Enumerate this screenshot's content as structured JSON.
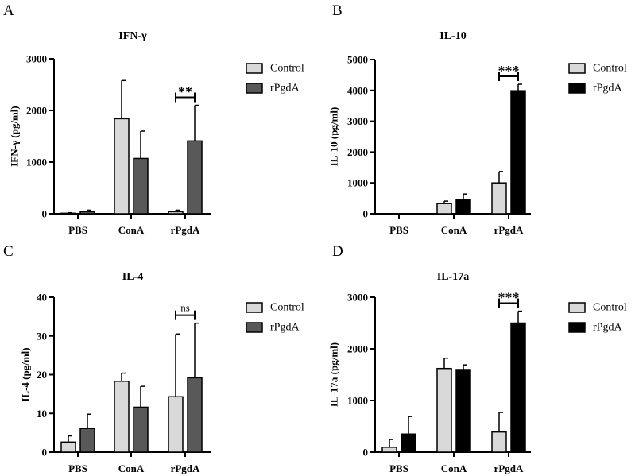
{
  "chart_data": [
    {
      "type": "bar",
      "panel": "A",
      "title": "IFN-γ",
      "ylabel": "IFN-γ (pg/ml)",
      "ylim": [
        0,
        3000
      ],
      "yticks": [
        0,
        1000,
        2000,
        3000
      ],
      "categories": [
        "PBS",
        "ConA",
        "rPgdA"
      ],
      "legend_position": "right",
      "series": [
        {
          "name": "Control",
          "color": "#d9d9d9",
          "values": [
            10,
            1840,
            40
          ],
          "errors": [
            10,
            740,
            30
          ]
        },
        {
          "name": "rPgdA",
          "color": "#595959",
          "values": [
            40,
            1070,
            1410
          ],
          "errors": [
            30,
            530,
            690
          ]
        }
      ],
      "annotations": [
        {
          "category": "rPgdA",
          "label": "**"
        }
      ]
    },
    {
      "type": "bar",
      "panel": "B",
      "title": "IL-10",
      "ylabel": "IL-10 (pg/ml)",
      "ylim": [
        0,
        5000
      ],
      "yticks": [
        0,
        1000,
        2000,
        3000,
        4000,
        5000
      ],
      "categories": [
        "PBS",
        "ConA",
        "rPgdA"
      ],
      "legend_position": "right",
      "series": [
        {
          "name": "Control",
          "color": "#d9d9d9",
          "values": [
            0,
            330,
            1000
          ],
          "errors": [
            0,
            80,
            370
          ]
        },
        {
          "name": "rPgdA",
          "color": "#000000",
          "values": [
            0,
            470,
            3990
          ],
          "errors": [
            0,
            170,
            210
          ]
        }
      ],
      "annotations": [
        {
          "category": "rPgdA",
          "label": "***"
        }
      ]
    },
    {
      "type": "bar",
      "panel": "C",
      "title": "IL-4",
      "ylabel": "IL-4 (pg/ml)",
      "ylim": [
        0,
        40
      ],
      "yticks": [
        0,
        10,
        20,
        30,
        40
      ],
      "categories": [
        "PBS",
        "ConA",
        "rPgdA"
      ],
      "legend_position": "right",
      "series": [
        {
          "name": "Control",
          "color": "#d9d9d9",
          "values": [
            2.6,
            18.3,
            14.3
          ],
          "errors": [
            1.6,
            2.1,
            16.2
          ]
        },
        {
          "name": "rPgdA",
          "color": "#595959",
          "values": [
            6.1,
            11.6,
            19.2
          ],
          "errors": [
            3.7,
            5.4,
            14.1
          ]
        }
      ],
      "annotations": [
        {
          "category": "rPgdA",
          "label": "ns"
        }
      ]
    },
    {
      "type": "bar",
      "panel": "D",
      "title": "IL-17a",
      "ylabel": "IL-17a (pg/ml)",
      "ylim": [
        0,
        3000
      ],
      "yticks": [
        0,
        1000,
        2000,
        3000
      ],
      "categories": [
        "PBS",
        "ConA",
        "rPgdA"
      ],
      "legend_position": "right",
      "series": [
        {
          "name": "Control",
          "color": "#d9d9d9",
          "values": [
            95,
            1620,
            390
          ],
          "errors": [
            150,
            200,
            380
          ]
        },
        {
          "name": "rPgdA",
          "color": "#000000",
          "values": [
            350,
            1600,
            2500
          ],
          "errors": [
            340,
            90,
            230
          ]
        }
      ],
      "annotations": [
        {
          "category": "rPgdA",
          "label": "***"
        }
      ]
    }
  ]
}
